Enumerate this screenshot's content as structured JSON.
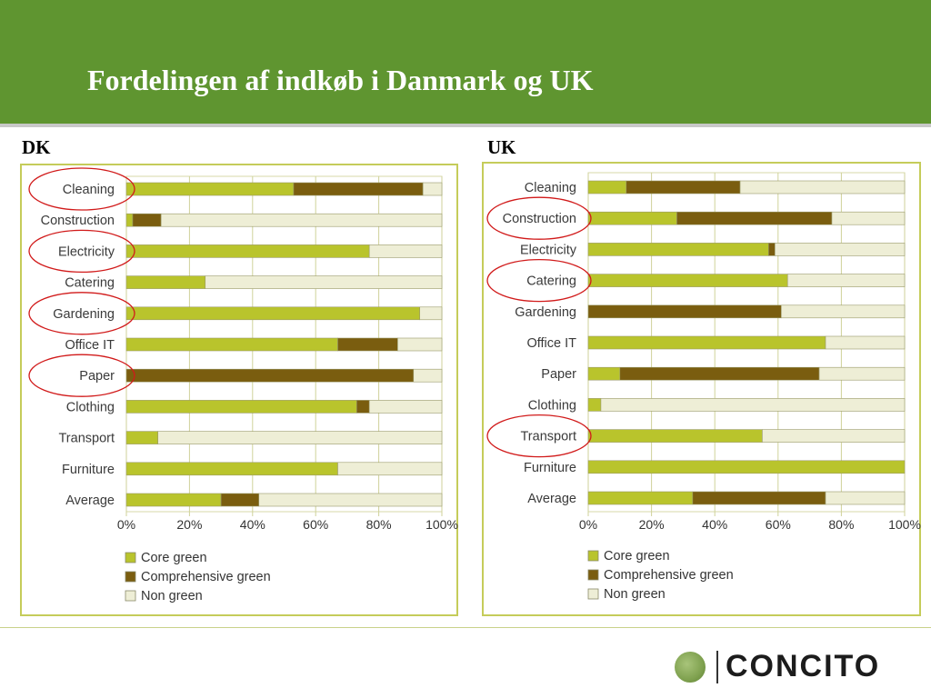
{
  "slide": {
    "title": "Fordelingen af indkøb i Danmark og UK",
    "logo_text": "CONCITO"
  },
  "colors": {
    "header_bg": "#5f9530",
    "core_green": "#b9c42c",
    "comprehensive_green": "#7a5d0f",
    "non_green": "#eeeed6",
    "panel_border": "#c5cc5a",
    "highlight_circle": "#d11a1a"
  },
  "chart_data": [
    {
      "type": "bar",
      "orientation": "horizontal",
      "stacked": true,
      "panel_label": "DK",
      "categories": [
        "Cleaning",
        "Construction",
        "Electricity",
        "Catering",
        "Gardening",
        "Office IT",
        "Paper",
        "Clothing",
        "Transport",
        "Furniture",
        "Average"
      ],
      "series": [
        {
          "name": "Core green",
          "values": [
            53,
            2,
            77,
            25,
            93,
            67,
            0,
            73,
            10,
            67,
            30
          ]
        },
        {
          "name": "Comprehensive green",
          "values": [
            41,
            9,
            0,
            0,
            0,
            19,
            91,
            4,
            0,
            0,
            12
          ]
        },
        {
          "name": "Non green",
          "values": [
            6,
            89,
            23,
            75,
            7,
            14,
            9,
            23,
            90,
            33,
            58
          ]
        }
      ],
      "xlim": [
        0,
        100
      ],
      "x_ticks": [
        "0%",
        "20%",
        "40%",
        "60%",
        "80%",
        "100%"
      ],
      "grid": true,
      "legend": "bottom",
      "highlighted": [
        "Cleaning",
        "Electricity",
        "Gardening",
        "Paper"
      ]
    },
    {
      "type": "bar",
      "orientation": "horizontal",
      "stacked": true,
      "panel_label": "UK",
      "categories": [
        "Cleaning",
        "Construction",
        "Electricity",
        "Catering",
        "Gardening",
        "Office IT",
        "Paper",
        "Clothing",
        "Transport",
        "Furniture",
        "Average"
      ],
      "series": [
        {
          "name": "Core green",
          "values": [
            12,
            28,
            57,
            63,
            0,
            75,
            10,
            4,
            55,
            100,
            33
          ]
        },
        {
          "name": "Comprehensive green",
          "values": [
            36,
            49,
            2,
            0,
            61,
            0,
            63,
            0,
            0,
            0,
            42
          ]
        },
        {
          "name": "Non green",
          "values": [
            52,
            23,
            41,
            37,
            39,
            25,
            27,
            96,
            45,
            0,
            25
          ]
        }
      ],
      "xlim": [
        0,
        100
      ],
      "x_ticks": [
        "0%",
        "20%",
        "40%",
        "60%",
        "80%",
        "100%"
      ],
      "grid": true,
      "legend": "bottom",
      "highlighted": [
        "Construction",
        "Catering",
        "Transport"
      ]
    }
  ]
}
